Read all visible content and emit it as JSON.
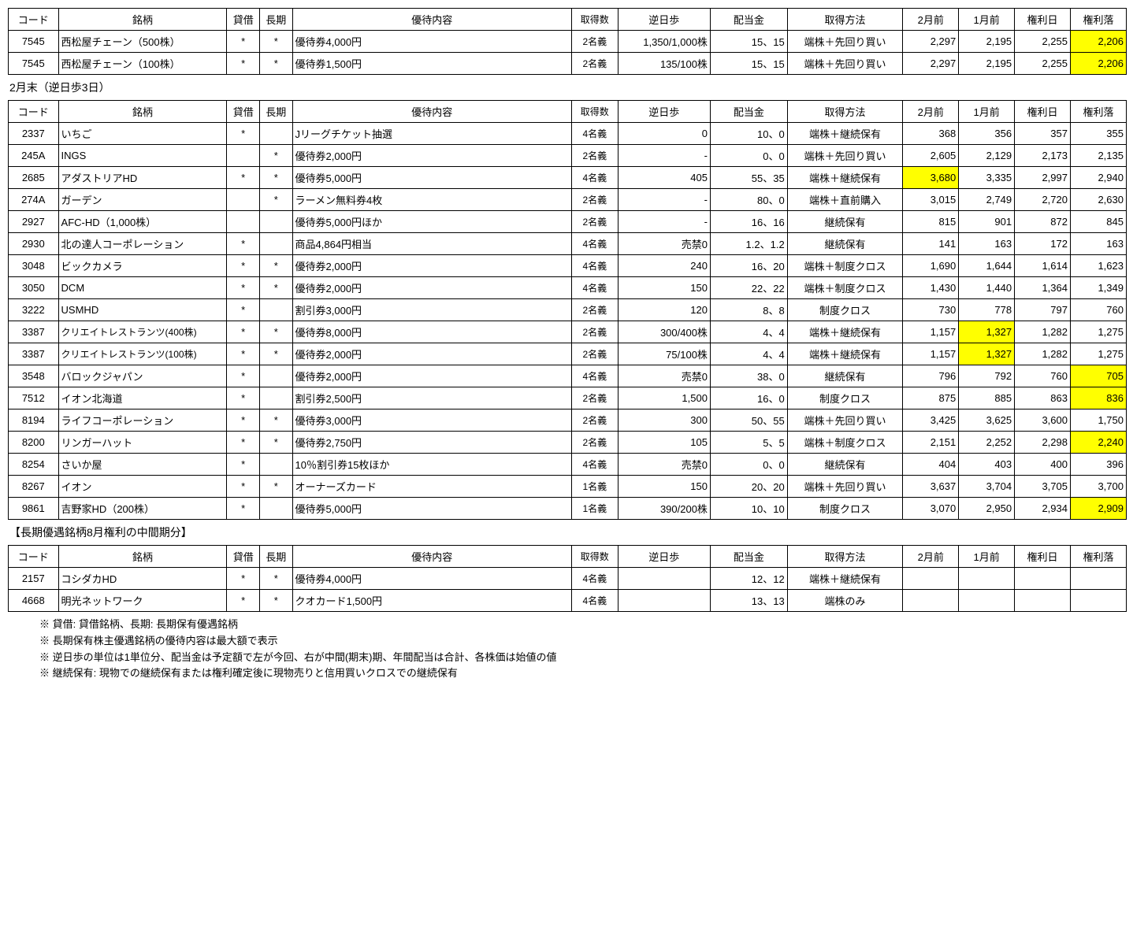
{
  "highlight_color": "#ffff00",
  "headers": {
    "code": "コード",
    "name": "銘柄",
    "tk": "貸借",
    "lt": "長期",
    "yutai": "優待内容",
    "acq": "取得数",
    "gh": "逆日歩",
    "div": "配当金",
    "method": "取得方法",
    "p2": "2月前",
    "p1": "1月前",
    "pr": "権利日",
    "pf": "権利落"
  },
  "section1": {
    "rows": [
      {
        "code": "7545",
        "name": "西松屋チェーン（500株）",
        "tk": "*",
        "lt": "*",
        "yutai": "優待券4,000円",
        "acq": "2名義",
        "gh": "1,350/1,000株",
        "div": "15、15",
        "method": "端株＋先回り買い",
        "p2": "2,297",
        "p1": "2,195",
        "pr": "2,255",
        "pf": "2,206",
        "hl": [
          "pf"
        ]
      },
      {
        "code": "7545",
        "name": "西松屋チェーン（100株）",
        "tk": "*",
        "lt": "*",
        "yutai": "優待券1,500円",
        "acq": "2名義",
        "gh": "135/100株",
        "div": "15、15",
        "method": "端株＋先回り買い",
        "p2": "2,297",
        "p1": "2,195",
        "pr": "2,255",
        "pf": "2,206",
        "hl": [
          "pf"
        ]
      }
    ]
  },
  "section2": {
    "caption": "2月末（逆日歩3日）",
    "rows": [
      {
        "code": "2337",
        "name": "いちご",
        "tk": "*",
        "lt": "",
        "yutai": "Jリーグチケット抽選",
        "acq": "4名義",
        "gh": "0",
        "div": "10、0",
        "method": "端株＋継続保有",
        "p2": "368",
        "p1": "356",
        "pr": "357",
        "pf": "355"
      },
      {
        "code": "245A",
        "name": "INGS",
        "tk": "",
        "lt": "*",
        "yutai": "優待券2,000円",
        "acq": "2名義",
        "gh": "-",
        "div": "0、0",
        "method": "端株＋先回り買い",
        "p2": "2,605",
        "p1": "2,129",
        "pr": "2,173",
        "pf": "2,135"
      },
      {
        "code": "2685",
        "name": "アダストリアHD",
        "tk": "*",
        "lt": "*",
        "yutai": "優待券5,000円",
        "acq": "4名義",
        "gh": "405",
        "div": "55、35",
        "method": "端株＋継続保有",
        "p2": "3,680",
        "p1": "3,335",
        "pr": "2,997",
        "pf": "2,940",
        "hl": [
          "p2"
        ]
      },
      {
        "code": "274A",
        "name": "ガーデン",
        "tk": "",
        "lt": "*",
        "yutai": "ラーメン無料券4枚",
        "acq": "2名義",
        "gh": "-",
        "div": "80、0",
        "method": "端株＋直前購入",
        "p2": "3,015",
        "p1": "2,749",
        "pr": "2,720",
        "pf": "2,630"
      },
      {
        "code": "2927",
        "name": "AFC-HD（1,000株）",
        "tk": "",
        "lt": "",
        "yutai": "優待券5,000円ほか",
        "acq": "2名義",
        "gh": "-",
        "div": "16、16",
        "method": "継続保有",
        "p2": "815",
        "p1": "901",
        "pr": "872",
        "pf": "845"
      },
      {
        "code": "2930",
        "name": "北の達人コーポレーション",
        "tk": "*",
        "lt": "",
        "yutai": "商品4,864円相当",
        "acq": "4名義",
        "gh": "売禁0",
        "div": "1.2、1.2",
        "method": "継続保有",
        "p2": "141",
        "p1": "163",
        "pr": "172",
        "pf": "163"
      },
      {
        "code": "3048",
        "name": "ビックカメラ",
        "tk": "*",
        "lt": "*",
        "yutai": "優待券2,000円",
        "acq": "4名義",
        "gh": "240",
        "div": "16、20",
        "method": "端株＋制度クロス",
        "p2": "1,690",
        "p1": "1,644",
        "pr": "1,614",
        "pf": "1,623"
      },
      {
        "code": "3050",
        "name": "DCM",
        "tk": "*",
        "lt": "*",
        "yutai": "優待券2,000円",
        "acq": "4名義",
        "gh": "150",
        "div": "22、22",
        "method": "端株＋制度クロス",
        "p2": "1,430",
        "p1": "1,440",
        "pr": "1,364",
        "pf": "1,349"
      },
      {
        "code": "3222",
        "name": "USMHD",
        "tk": "*",
        "lt": "",
        "yutai": "割引券3,000円",
        "acq": "2名義",
        "gh": "120",
        "div": "8、8",
        "method": "制度クロス",
        "p2": "730",
        "p1": "778",
        "pr": "797",
        "pf": "760"
      },
      {
        "code": "3387",
        "name": "クリエイトレストランツ(400株)",
        "tk": "*",
        "lt": "*",
        "yutai": "優待券8,000円",
        "acq": "2名義",
        "gh": "300/400株",
        "div": "4、4",
        "method": "端株＋継続保有",
        "p2": "1,157",
        "p1": "1,327",
        "pr": "1,282",
        "pf": "1,275",
        "hl": [
          "p1"
        ],
        "small": true
      },
      {
        "code": "3387",
        "name": "クリエイトレストランツ(100株)",
        "tk": "*",
        "lt": "*",
        "yutai": "優待券2,000円",
        "acq": "2名義",
        "gh": "75/100株",
        "div": "4、4",
        "method": "端株＋継続保有",
        "p2": "1,157",
        "p1": "1,327",
        "pr": "1,282",
        "pf": "1,275",
        "hl": [
          "p1"
        ],
        "small": true
      },
      {
        "code": "3548",
        "name": "バロックジャパン",
        "tk": "*",
        "lt": "",
        "yutai": "優待券2,000円",
        "acq": "4名義",
        "gh": "売禁0",
        "div": "38、0",
        "method": "継続保有",
        "p2": "796",
        "p1": "792",
        "pr": "760",
        "pf": "705",
        "hl": [
          "pf"
        ]
      },
      {
        "code": "7512",
        "name": "イオン北海道",
        "tk": "*",
        "lt": "",
        "yutai": "割引券2,500円",
        "acq": "2名義",
        "gh": "1,500",
        "div": "16、0",
        "method": "制度クロス",
        "p2": "875",
        "p1": "885",
        "pr": "863",
        "pf": "836",
        "hl": [
          "pf"
        ]
      },
      {
        "code": "8194",
        "name": "ライフコーポレーション",
        "tk": "*",
        "lt": "*",
        "yutai": "優待券3,000円",
        "acq": "2名義",
        "gh": "300",
        "div": "50、55",
        "method": "端株＋先回り買い",
        "p2": "3,425",
        "p1": "3,625",
        "pr": "3,600",
        "pf": "1,750"
      },
      {
        "code": "8200",
        "name": "リンガーハット",
        "tk": "*",
        "lt": "*",
        "yutai": "優待券2,750円",
        "acq": "2名義",
        "gh": "105",
        "div": "5、5",
        "method": "端株＋制度クロス",
        "p2": "2,151",
        "p1": "2,252",
        "pr": "2,298",
        "pf": "2,240",
        "hl": [
          "pf"
        ]
      },
      {
        "code": "8254",
        "name": "さいか屋",
        "tk": "*",
        "lt": "",
        "yutai": "10％割引券15枚ほか",
        "acq": "4名義",
        "gh": "売禁0",
        "div": "0、0",
        "method": "継続保有",
        "p2": "404",
        "p1": "403",
        "pr": "400",
        "pf": "396"
      },
      {
        "code": "8267",
        "name": "イオン",
        "tk": "*",
        "lt": "*",
        "yutai": "オーナーズカード",
        "acq": "1名義",
        "gh": "150",
        "div": "20、20",
        "method": "端株＋先回り買い",
        "p2": "3,637",
        "p1": "3,704",
        "pr": "3,705",
        "pf": "3,700"
      },
      {
        "code": "9861",
        "name": "吉野家HD（200株）",
        "tk": "*",
        "lt": "",
        "yutai": "優待券5,000円",
        "acq": "1名義",
        "gh": "390/200株",
        "div": "10、10",
        "method": "制度クロス",
        "p2": "3,070",
        "p1": "2,950",
        "pr": "2,934",
        "pf": "2,909",
        "hl": [
          "pf"
        ]
      }
    ]
  },
  "section3": {
    "caption": "【長期優遇銘柄8月権利の中間期分】",
    "rows": [
      {
        "code": "2157",
        "name": "コシダカHD",
        "tk": "*",
        "lt": "*",
        "yutai": "優待券4,000円",
        "acq": "4名義",
        "gh": "",
        "div": "12、12",
        "method": "端株＋継続保有",
        "p2": "",
        "p1": "",
        "pr": "",
        "pf": ""
      },
      {
        "code": "4668",
        "name": "明光ネットワーク",
        "tk": "*",
        "lt": "*",
        "yutai": "クオカード1,500円",
        "acq": "4名義",
        "gh": "",
        "div": "13、13",
        "method": "端株のみ",
        "p2": "",
        "p1": "",
        "pr": "",
        "pf": ""
      }
    ]
  },
  "notes": [
    "※ 貸借: 貸借銘柄、長期: 長期保有優遇銘柄",
    "※ 長期保有株主優遇銘柄の優待内容は最大額で表示",
    "※ 逆日歩の単位は1単位分、配当金は予定額で左が今回、右が中間(期末)期、年間配当は合計、各株価は始値の値",
    "※ 継続保有: 現物での継続保有または権利確定後に現物売りと信用買いクロスでの継続保有"
  ]
}
